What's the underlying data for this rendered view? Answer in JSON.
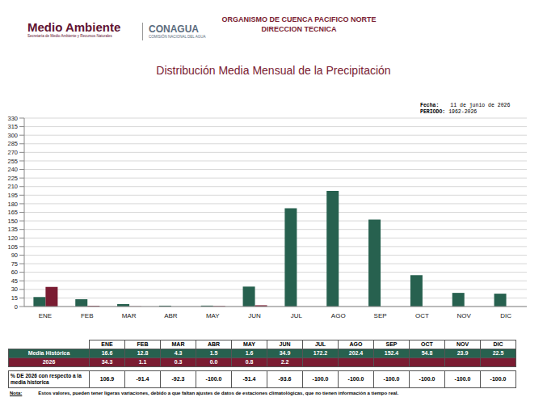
{
  "header": {
    "brand": "Medio Ambiente",
    "brand_sub": "Secretaría de Medio Ambiente y Recursos Naturales",
    "agency": "CONAGUA",
    "agency_sub": "COMISIÓN NACIONAL DEL AGUA",
    "organization": "ORGANISMO DE CUENCA PACIFICO NORTE",
    "department": "DIRECCION TECNICA"
  },
  "date_label": "Fecha:",
  "date": "11 de junio de 2026",
  "period_label": "PERIODO:",
  "period": "1962-2026",
  "chart_data": {
    "type": "bar",
    "title": "Distribución Media Mensual de la Precipitación",
    "categories": [
      "ENE",
      "FEB",
      "MAR",
      "ABR",
      "MAY",
      "JUN",
      "JUL",
      "AGO",
      "SEP",
      "OCT",
      "NOV",
      "DIC"
    ],
    "series": [
      {
        "name": "Media Histórica",
        "color": "#27614f",
        "values": [
          16.6,
          12.8,
          4.3,
          1.5,
          1.6,
          34.9,
          172.2,
          202.4,
          152.4,
          54.8,
          23.9,
          22.5
        ]
      },
      {
        "name": "2026",
        "color": "#7a1c32",
        "values": [
          34.3,
          1.1,
          0.3,
          0.0,
          0.8,
          2.2,
          null,
          null,
          null,
          null,
          null,
          null
        ]
      }
    ],
    "ylim": [
      0,
      330
    ],
    "yticks": [
      0,
      15,
      30,
      45,
      60,
      75,
      90,
      105,
      120,
      135,
      150,
      165,
      180,
      195,
      210,
      225,
      240,
      255,
      270,
      285,
      300,
      315,
      330
    ],
    "grid": true
  },
  "table": {
    "pct_label": "% DE 2026 con respecto a la media historica",
    "pct_values": [
      106.9,
      -91.4,
      -92.3,
      -100.0,
      -51.4,
      -93.6,
      -100.0,
      -100.0,
      -100.0,
      -100.0,
      -100.0,
      -100.0
    ]
  },
  "note_label": "Nota:",
  "note": "Estos valores, pueden tener ligeras variaciones, debido a que faltan ajustes de datos de estaciones climatológicas, que no tienen información a tiempo real."
}
